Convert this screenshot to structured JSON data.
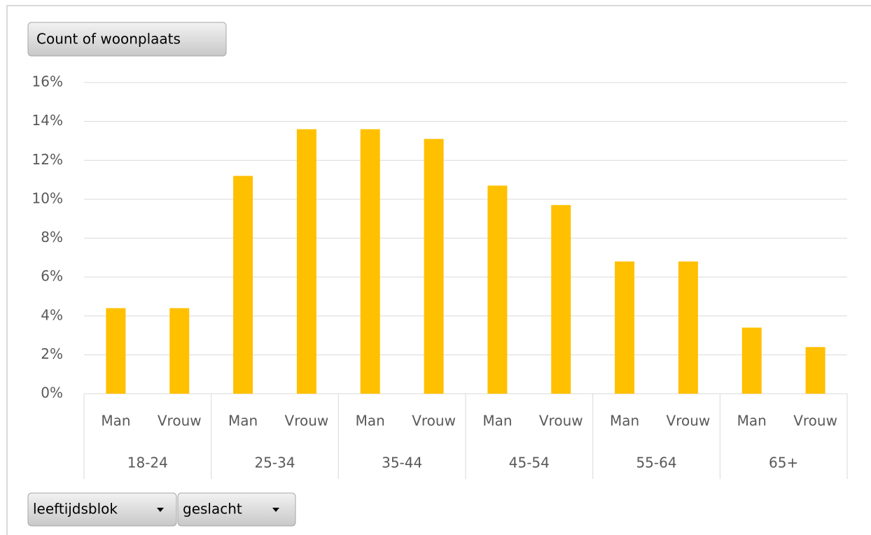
{
  "chart_data": {
    "type": "bar",
    "value_field": "Count of woonplaats",
    "axis_fields": [
      "leeftijdsblok",
      "geslacht"
    ],
    "groups": [
      "18-24",
      "25-34",
      "35-44",
      "45-54",
      "55-64",
      "65+"
    ],
    "categories": [
      "Man",
      "Vrouw",
      "Man",
      "Vrouw",
      "Man",
      "Vrouw",
      "Man",
      "Vrouw",
      "Man",
      "Vrouw",
      "Man",
      "Vrouw"
    ],
    "values": [
      4.4,
      4.4,
      11.2,
      13.6,
      13.6,
      13.1,
      10.7,
      9.7,
      6.8,
      6.8,
      3.4,
      2.4
    ],
    "color": "#ffc000",
    "ylim": [
      0,
      16
    ],
    "yticks": [
      {
        "value": 0,
        "label": "0%"
      },
      {
        "value": 2,
        "label": "2%"
      },
      {
        "value": 4,
        "label": "4%"
      },
      {
        "value": 6,
        "label": "6%"
      },
      {
        "value": 8,
        "label": "8%"
      },
      {
        "value": 10,
        "label": "10%"
      },
      {
        "value": 12,
        "label": "12%"
      },
      {
        "value": 14,
        "label": "14%"
      },
      {
        "value": 16,
        "label": "16%"
      }
    ],
    "grid": true
  }
}
